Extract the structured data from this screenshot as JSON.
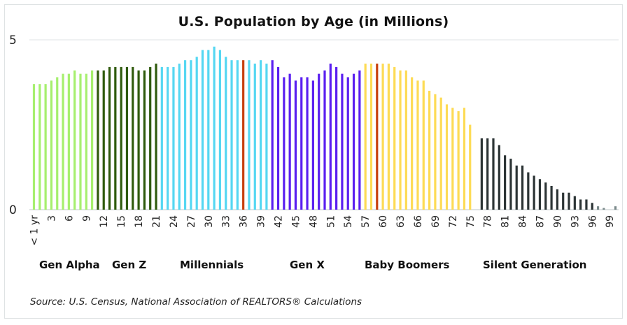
{
  "chart_data": {
    "type": "bar",
    "title": "U.S. Population by Age (in Millions)",
    "xlabel": "",
    "ylabel": "",
    "ylim": [
      0,
      5
    ],
    "yticks": [
      "0",
      "5"
    ],
    "grid": true,
    "legend": "none",
    "source": "Source: U.S. Census, National Association of REALTORS® Calculations",
    "x_tick_labels": [
      "< 1 yr",
      "3",
      "6",
      "9",
      "12",
      "15",
      "18",
      "21",
      "24",
      "27",
      "30",
      "33",
      "36",
      "39",
      "42",
      "45",
      "48",
      "51",
      "54",
      "57",
      "60",
      "63",
      "66",
      "69",
      "72",
      "75",
      "78",
      "81",
      "84",
      "87",
      "90",
      "93",
      "96",
      "99"
    ],
    "generations": [
      {
        "name": "Gen Alpha",
        "from_age": 0,
        "to_age": 10,
        "color": "#a6ef6e"
      },
      {
        "name": "Gen Z",
        "from_age": 11,
        "to_age": 21,
        "color": "#2f5a0c"
      },
      {
        "name": "Millennials",
        "from_age": 22,
        "to_age": 40,
        "color": "#55d7f2"
      },
      {
        "name": "Gen X",
        "from_age": 41,
        "to_age": 56,
        "color": "#5a1ff0"
      },
      {
        "name": "Baby Boomers",
        "from_age": 57,
        "to_age": 75,
        "color": "#fddb55"
      },
      {
        "name": "Silent Generation",
        "from_age": 76,
        "to_age": 100,
        "color": "#2c3435"
      }
    ],
    "highlight_color": "#c8400e",
    "highlight_ages": [
      36,
      59
    ],
    "tail_color": "#7b8a8b",
    "ages": [
      0,
      1,
      2,
      3,
      4,
      5,
      6,
      7,
      8,
      9,
      10,
      11,
      12,
      13,
      14,
      15,
      16,
      17,
      18,
      19,
      20,
      21,
      22,
      23,
      24,
      25,
      26,
      27,
      28,
      29,
      30,
      31,
      32,
      33,
      34,
      35,
      36,
      37,
      38,
      39,
      40,
      41,
      42,
      43,
      44,
      45,
      46,
      47,
      48,
      49,
      50,
      51,
      52,
      53,
      54,
      55,
      56,
      57,
      58,
      59,
      60,
      61,
      62,
      63,
      64,
      65,
      66,
      67,
      68,
      69,
      70,
      71,
      72,
      73,
      74,
      75,
      76,
      77,
      78,
      79,
      80,
      81,
      82,
      83,
      84,
      85,
      86,
      87,
      88,
      89,
      90,
      91,
      92,
      93,
      94,
      95,
      96,
      97,
      98,
      99,
      100
    ],
    "values": [
      3.7,
      3.7,
      3.7,
      3.8,
      3.9,
      4.0,
      4.0,
      4.1,
      4.0,
      4.0,
      4.1,
      4.1,
      4.1,
      4.2,
      4.2,
      4.2,
      4.2,
      4.2,
      4.1,
      4.1,
      4.2,
      4.3,
      4.2,
      4.2,
      4.2,
      4.3,
      4.4,
      4.4,
      4.5,
      4.7,
      4.7,
      4.8,
      4.7,
      4.5,
      4.4,
      4.4,
      4.4,
      4.4,
      4.3,
      4.4,
      4.3,
      4.4,
      4.2,
      3.9,
      4.0,
      3.8,
      3.9,
      3.9,
      3.8,
      4.0,
      4.1,
      4.3,
      4.2,
      4.0,
      3.9,
      4.0,
      4.1,
      4.3,
      4.3,
      4.3,
      4.3,
      4.3,
      4.2,
      4.1,
      4.1,
      3.9,
      3.8,
      3.8,
      3.5,
      3.4,
      3.3,
      3.1,
      3.0,
      2.9,
      3.0,
      2.5,
      0,
      2.1,
      2.1,
      2.1,
      1.9,
      1.6,
      1.5,
      1.3,
      1.3,
      1.1,
      1.0,
      0.9,
      0.8,
      0.7,
      0.6,
      0.5,
      0.5,
      0.4,
      0.3,
      0.3,
      0.2,
      0.1,
      0.05,
      0,
      0.1
    ]
  }
}
